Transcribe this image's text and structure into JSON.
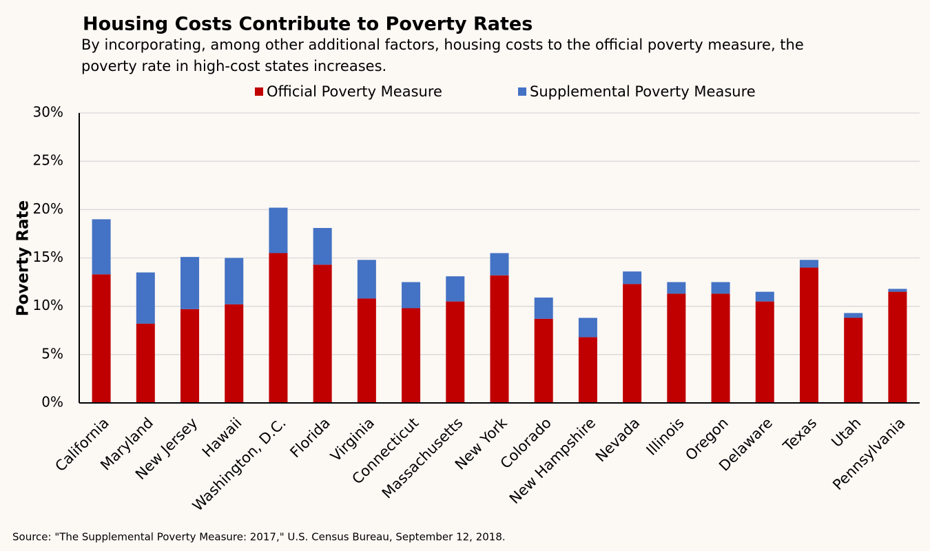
{
  "chart_data": {
    "type": "stacked_bar",
    "title": "Housing Costs Contribute to Poverty Rates",
    "subtitle": "By incorporating, among other additional factors, housing costs to the official poverty measure, the poverty rate in high-cost states increases.",
    "y_label": "Poverty Rate",
    "source": "Source: \"The Supplemental Poverty Measure: 2017,\" U.S. Census Bureau, September 12, 2018.",
    "categories": [
      "California",
      "Maryland",
      "New Jersey",
      "Hawaii",
      "Washington, D.C.",
      "Florida",
      "Virginia",
      "Connecticut",
      "Massachusetts",
      "New York",
      "Colorado",
      "New Hampshire",
      "Nevada",
      "Illinois",
      "Oregon",
      "Delaware",
      "Texas",
      "Utah",
      "Pennsylvania"
    ],
    "series": [
      {
        "name": "Official Poverty Measure",
        "color": "#c00000",
        "values": [
          13.3,
          8.2,
          9.7,
          10.2,
          15.5,
          14.3,
          10.8,
          9.8,
          10.5,
          13.2,
          8.7,
          6.8,
          12.3,
          11.3,
          11.3,
          10.5,
          14.0,
          8.8,
          11.5
        ]
      },
      {
        "name": "Supplemental Poverty Measure",
        "color": "#4472c4",
        "values": [
          5.7,
          5.3,
          5.4,
          4.8,
          4.7,
          3.8,
          4.0,
          2.7,
          2.6,
          2.3,
          2.2,
          2.0,
          1.3,
          1.2,
          1.2,
          1.0,
          0.8,
          0.5,
          0.3
        ]
      }
    ],
    "ylim": [
      0,
      30
    ],
    "yticks": [
      {
        "value": 0,
        "label": "0%"
      },
      {
        "value": 5,
        "label": "5%"
      },
      {
        "value": 10,
        "label": "10%"
      },
      {
        "value": 15,
        "label": "15%"
      },
      {
        "value": 20,
        "label": "20%"
      },
      {
        "value": 25,
        "label": "25%"
      },
      {
        "value": 30,
        "label": "30%"
      }
    ],
    "grid": true,
    "legend": "top"
  }
}
